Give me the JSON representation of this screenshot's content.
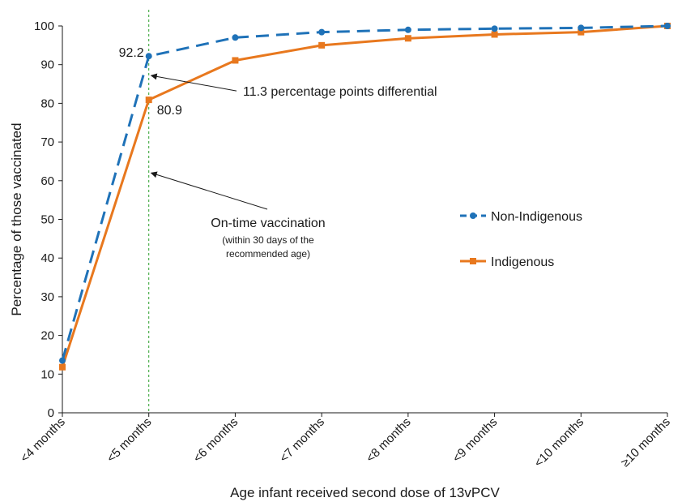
{
  "chart_data": {
    "type": "line",
    "xlabel": "Age infant received second dose of 13vPCV",
    "ylabel": "Percentage of those vaccinated",
    "categories": [
      "<4 months",
      "<5 months",
      "<6 months",
      "<7 months",
      "<8 months",
      "<9 months",
      "<10 months",
      "≥10 months"
    ],
    "ylim": [
      0,
      100
    ],
    "yticks": [
      0,
      10,
      20,
      30,
      40,
      50,
      60,
      70,
      80,
      90,
      100
    ],
    "grid": false,
    "legend_position": "right",
    "series": [
      {
        "name": "Non-Indigenous",
        "values": [
          13.5,
          92.2,
          97.0,
          98.4,
          99.0,
          99.3,
          99.5,
          100.0
        ],
        "color": "#1f72b8",
        "line_style": "dashed",
        "marker": "circle"
      },
      {
        "name": "Indigenous",
        "values": [
          11.8,
          80.9,
          91.1,
          95.0,
          96.8,
          97.8,
          98.4,
          100.0
        ],
        "color": "#e8781e",
        "line_style": "solid",
        "marker": "square"
      }
    ],
    "data_labels": {
      "non_indigenous_at_5_months": "92.2",
      "indigenous_at_5_months": "80.9"
    },
    "annotations": {
      "differential": "11.3 percentage points differential",
      "ontime_title": "On-time vaccination",
      "ontime_sub1": "(within 30 days of the",
      "ontime_sub2": "recommended age)"
    },
    "reference_line_color": "#2ca02c"
  }
}
